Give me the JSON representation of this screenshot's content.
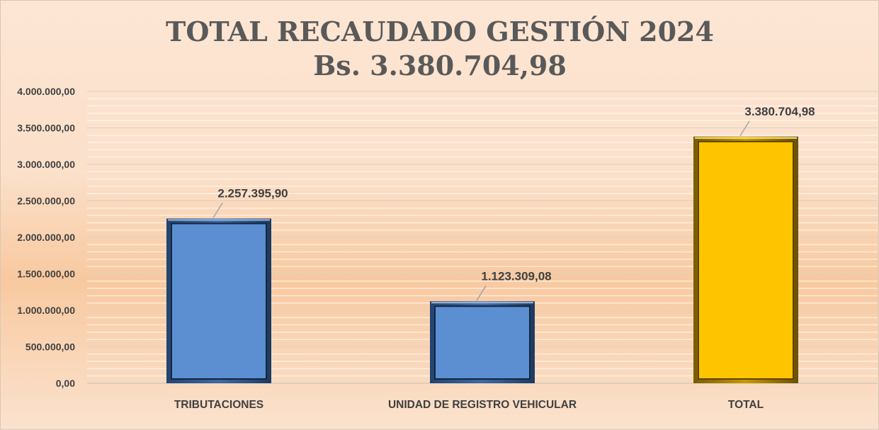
{
  "chart_data": {
    "type": "bar",
    "title": "TOTAL RECAUDADO GESTIÓN 2024",
    "subtitle": "Bs. 3.380.704,98",
    "categories": [
      "TRIBUTACIONES",
      "UNIDAD DE REGISTRO VEHICULAR",
      "TOTAL"
    ],
    "values": [
      2257395.9,
      1123309.08,
      3380704.98
    ],
    "value_labels": [
      "2.257.395,90",
      "1.123.309,08",
      "3.380.704,98"
    ],
    "bar_colors": [
      "#5b8fd1",
      "#5b8fd1",
      "#ffc400"
    ],
    "ylim": [
      0,
      4000000
    ],
    "y_ticks": [
      0,
      500000,
      1000000,
      1500000,
      2000000,
      2500000,
      3000000,
      3500000,
      4000000
    ],
    "y_tick_labels": [
      "0,00",
      "500.000,00",
      "1.000.000,00",
      "1.500.000,00",
      "2.000.000,00",
      "2.500.000,00",
      "3.000.000,00",
      "3.500.000,00",
      "4.000.000,00"
    ],
    "xlabel": "",
    "ylabel": "",
    "grid": true,
    "legend": "none"
  }
}
